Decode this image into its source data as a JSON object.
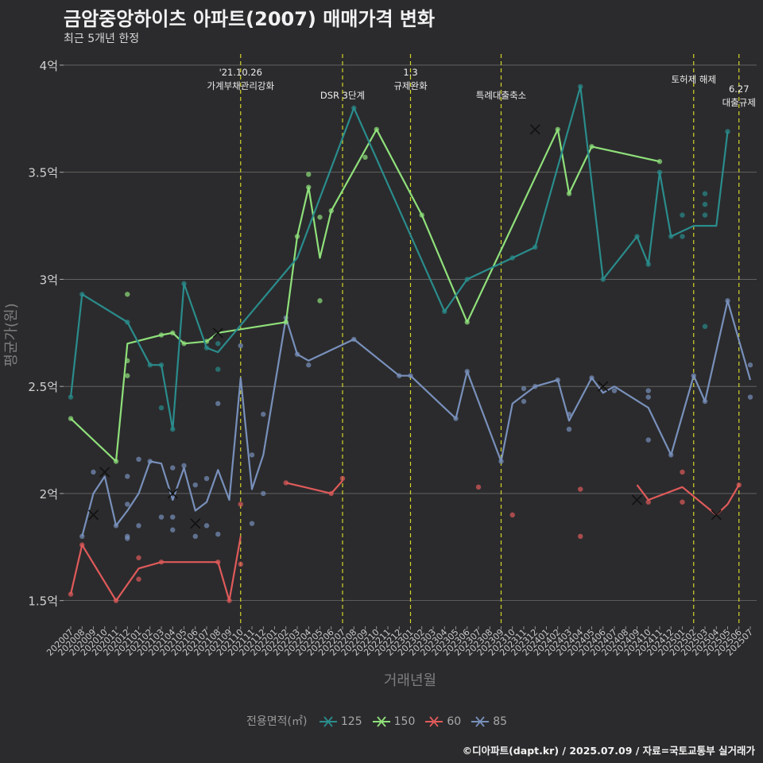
{
  "title": "금암중앙하이츠 아파트(2007) 매매가격 변화",
  "subtitle": "최근 5개년 한정",
  "caption": "©디아파트(dapt.kr) / 2025.07.09 / 자료=국토교통부 실거래가",
  "colors": {
    "125": "#2a8c8c",
    "150": "#8fe07a",
    "60": "#e05a5a",
    "85": "#7890bb",
    "vline": "#d4d42a",
    "grid": "#6a6a6a"
  },
  "chart_data": {
    "type": "line",
    "xlabel": "거래년월",
    "ylabel": "평균가(원)",
    "ylim": [
      1.38,
      4.1
    ],
    "yticks": [
      {
        "v": 1.5,
        "label": "1.5억"
      },
      {
        "v": 2,
        "label": "2억"
      },
      {
        "v": 2.5,
        "label": "2.5억"
      },
      {
        "v": 3,
        "label": "3억"
      },
      {
        "v": 3.5,
        "label": "3.5억"
      },
      {
        "v": 4,
        "label": "4억"
      }
    ],
    "categories": [
      "202007",
      "202008",
      "202009",
      "202010",
      "202011",
      "202012",
      "202101",
      "202102",
      "202103",
      "202104",
      "202105",
      "202106",
      "202107",
      "202108",
      "202109",
      "202110",
      "202111",
      "202112",
      "202201",
      "202202",
      "202203",
      "202204",
      "202205",
      "202206",
      "202207",
      "202208",
      "202209",
      "202210",
      "202211",
      "202212",
      "202301",
      "202302",
      "202303",
      "202304",
      "202305",
      "202306",
      "202307",
      "202308",
      "202309",
      "202310",
      "202311",
      "202312",
      "202401",
      "202402",
      "202403",
      "202404",
      "202405",
      "202406",
      "202407",
      "202408",
      "202409",
      "202410",
      "202411",
      "202412",
      "202501",
      "202502",
      "202503",
      "202504",
      "202505",
      "202506",
      "202507"
    ],
    "legend_title": "전용면적(㎡)",
    "events": [
      {
        "x": "202110",
        "label": "'21.10.26\n가계부채관리강화",
        "row": 0
      },
      {
        "x": "202207",
        "label": "DSR 3단계",
        "row": 2
      },
      {
        "x": "202301",
        "label": "1.3\n규제완화",
        "row": 0
      },
      {
        "x": "202309",
        "label": "특례대출축소",
        "row": 2
      },
      {
        "x": "202502",
        "label": "토허제 해제",
        "row": 1
      },
      {
        "x": "202506",
        "label": "6.27\n대출규제",
        "row": 1
      }
    ],
    "series": [
      {
        "name": "125",
        "line": [
          [
            "202007",
            2.45
          ],
          [
            "202008",
            2.93
          ],
          [
            "202012",
            2.8
          ],
          [
            "202102",
            2.6
          ],
          [
            "202103",
            2.6
          ],
          [
            "202104",
            2.3
          ],
          [
            "202105",
            2.98
          ],
          [
            "202107",
            2.68
          ],
          [
            "202108",
            2.66
          ],
          [
            "202203",
            3.1
          ],
          [
            "202208",
            3.8
          ],
          [
            "202304",
            2.85
          ],
          [
            "202306",
            3.0
          ],
          [
            "202310",
            3.1
          ],
          [
            "202312",
            3.15
          ],
          [
            "202404",
            3.9
          ],
          [
            "202406",
            3.0
          ],
          [
            "202409",
            3.2
          ],
          [
            "202410",
            3.07
          ],
          [
            "202411",
            3.5
          ],
          [
            "202412",
            3.2
          ],
          [
            "202502",
            3.25
          ],
          [
            "202504",
            3.25
          ],
          [
            "202505",
            3.69
          ]
        ],
        "points": [
          [
            "202007",
            2.45
          ],
          [
            "202008",
            2.93
          ],
          [
            "202012",
            2.8
          ],
          [
            "202102",
            2.6
          ],
          [
            "202103",
            2.6
          ],
          [
            "202103",
            2.4
          ],
          [
            "202104",
            2.3
          ],
          [
            "202105",
            2.98
          ],
          [
            "202107",
            2.68
          ],
          [
            "202108",
            2.7
          ],
          [
            "202108",
            2.58
          ],
          [
            "202208",
            3.8
          ],
          [
            "202304",
            2.85
          ],
          [
            "202306",
            3.0
          ],
          [
            "202310",
            3.1
          ],
          [
            "202312",
            3.15
          ],
          [
            "202404",
            3.9
          ],
          [
            "202406",
            3.0
          ],
          [
            "202409",
            3.2
          ],
          [
            "202410",
            3.07
          ],
          [
            "202411",
            3.5
          ],
          [
            "202412",
            3.2
          ],
          [
            "202501",
            3.3
          ],
          [
            "202501",
            3.2
          ],
          [
            "202503",
            3.4
          ],
          [
            "202503",
            3.35
          ],
          [
            "202503",
            3.3
          ],
          [
            "202503",
            2.78
          ],
          [
            "202505",
            3.69
          ]
        ],
        "crosses": []
      },
      {
        "name": "150",
        "line": [
          [
            "202007",
            2.35
          ],
          [
            "202011",
            2.15
          ],
          [
            "202012",
            2.7
          ],
          [
            "202103",
            2.74
          ],
          [
            "202104",
            2.75
          ],
          [
            "202105",
            2.7
          ],
          [
            "202107",
            2.71
          ],
          [
            "202108",
            2.75
          ],
          [
            "202202",
            2.8
          ],
          [
            "202203",
            3.2
          ],
          [
            "202204",
            3.43
          ],
          [
            "202205",
            3.1
          ],
          [
            "202206",
            3.32
          ],
          [
            "202210",
            3.7
          ],
          [
            "202302",
            3.3
          ],
          [
            "202306",
            2.8
          ],
          [
            "202402",
            3.7
          ],
          [
            "202403",
            3.4
          ],
          [
            "202405",
            3.62
          ],
          [
            "202411",
            3.55
          ]
        ],
        "points": [
          [
            "202007",
            2.35
          ],
          [
            "202011",
            2.15
          ],
          [
            "202012",
            2.93
          ],
          [
            "202012",
            2.62
          ],
          [
            "202012",
            2.55
          ],
          [
            "202103",
            2.74
          ],
          [
            "202104",
            2.75
          ],
          [
            "202105",
            2.7
          ],
          [
            "202107",
            2.71
          ],
          [
            "202202",
            2.8
          ],
          [
            "202203",
            3.2
          ],
          [
            "202204",
            3.49
          ],
          [
            "202204",
            3.43
          ],
          [
            "202205",
            3.29
          ],
          [
            "202205",
            2.9
          ],
          [
            "202206",
            3.32
          ],
          [
            "202209",
            3.57
          ],
          [
            "202210",
            3.7
          ],
          [
            "202302",
            3.3
          ],
          [
            "202306",
            2.8
          ],
          [
            "202402",
            3.7
          ],
          [
            "202403",
            3.4
          ],
          [
            "202405",
            3.62
          ],
          [
            "202411",
            3.55
          ]
        ],
        "crosses": [
          [
            "202108",
            2.75
          ],
          [
            "202312",
            3.7
          ]
        ]
      },
      {
        "name": "60",
        "line": [
          [
            "202007",
            1.53
          ],
          [
            "202008",
            1.76
          ],
          [
            "202011",
            1.5
          ],
          [
            "202101",
            1.65
          ],
          [
            "202103",
            1.68
          ],
          [
            "202108",
            1.68
          ],
          [
            "202109",
            1.5
          ],
          [
            "202110",
            1.8
          ]
        ],
        "line2": [
          [
            "202202",
            2.05
          ],
          [
            "202206",
            2.0
          ],
          [
            "202207",
            2.06
          ]
        ],
        "line3": [
          [
            "202409",
            2.04
          ],
          [
            "202410",
            1.97
          ],
          [
            "202501",
            2.03
          ],
          [
            "202504",
            1.9
          ],
          [
            "202505",
            1.95
          ],
          [
            "202506",
            2.04
          ]
        ],
        "points": [
          [
            "202007",
            1.53
          ],
          [
            "202008",
            1.76
          ],
          [
            "202011",
            1.5
          ],
          [
            "202101",
            1.7
          ],
          [
            "202101",
            1.6
          ],
          [
            "202103",
            1.68
          ],
          [
            "202108",
            1.68
          ],
          [
            "202109",
            1.5
          ],
          [
            "202110",
            1.95
          ],
          [
            "202110",
            1.67
          ],
          [
            "202202",
            2.05
          ],
          [
            "202206",
            2.0
          ],
          [
            "202207",
            2.07
          ],
          [
            "202307",
            2.03
          ],
          [
            "202310",
            1.9
          ],
          [
            "202404",
            2.02
          ],
          [
            "202404",
            1.8
          ],
          [
            "202410",
            1.96
          ],
          [
            "202501",
            2.1
          ],
          [
            "202501",
            1.96
          ],
          [
            "202506",
            2.04
          ]
        ],
        "crosses": [
          [
            "202409",
            1.97
          ],
          [
            "202504",
            1.9
          ]
        ]
      },
      {
        "name": "85",
        "line": [
          [
            "202008",
            1.8
          ],
          [
            "202009",
            2.0
          ],
          [
            "202010",
            2.08
          ],
          [
            "202011",
            1.85
          ],
          [
            "202012",
            1.92
          ],
          [
            "202101",
            2.0
          ],
          [
            "202102",
            2.15
          ],
          [
            "202103",
            2.14
          ],
          [
            "202104",
            1.97
          ],
          [
            "202105",
            2.12
          ],
          [
            "202106",
            1.92
          ],
          [
            "202107",
            1.96
          ],
          [
            "202108",
            2.11
          ],
          [
            "202109",
            1.97
          ],
          [
            "202110",
            2.54
          ],
          [
            "202111",
            2.02
          ],
          [
            "202112",
            2.18
          ],
          [
            "202202",
            2.82
          ],
          [
            "202203",
            2.65
          ],
          [
            "202204",
            2.62
          ],
          [
            "202208",
            2.72
          ],
          [
            "202212",
            2.55
          ],
          [
            "202301",
            2.55
          ],
          [
            "202305",
            2.35
          ],
          [
            "202306",
            2.57
          ],
          [
            "202309",
            2.15
          ],
          [
            "202310",
            2.42
          ],
          [
            "202311",
            2.46
          ],
          [
            "202312",
            2.5
          ],
          [
            "202402",
            2.53
          ],
          [
            "202403",
            2.34
          ],
          [
            "202405",
            2.54
          ],
          [
            "202406",
            2.47
          ],
          [
            "202407",
            2.5
          ],
          [
            "202410",
            2.4
          ],
          [
            "202412",
            2.18
          ],
          [
            "202502",
            2.55
          ],
          [
            "202503",
            2.43
          ],
          [
            "202505",
            2.9
          ],
          [
            "202507",
            2.53
          ]
        ],
        "points": [
          [
            "202008",
            1.8
          ],
          [
            "202009",
            2.1
          ],
          [
            "202011",
            1.85
          ],
          [
            "202012",
            2.08
          ],
          [
            "202012",
            1.95
          ],
          [
            "202012",
            1.8
          ],
          [
            "202012",
            1.79
          ],
          [
            "202101",
            2.16
          ],
          [
            "202101",
            1.85
          ],
          [
            "202102",
            2.15
          ],
          [
            "202103",
            1.89
          ],
          [
            "202104",
            2.12
          ],
          [
            "202104",
            1.89
          ],
          [
            "202104",
            1.83
          ],
          [
            "202105",
            2.13
          ],
          [
            "202106",
            2.04
          ],
          [
            "202106",
            1.8
          ],
          [
            "202107",
            2.07
          ],
          [
            "202107",
            1.85
          ],
          [
            "202108",
            2.42
          ],
          [
            "202108",
            1.81
          ],
          [
            "202110",
            2.69
          ],
          [
            "202111",
            2.18
          ],
          [
            "202111",
            1.86
          ],
          [
            "202112",
            2.37
          ],
          [
            "202112",
            2.0
          ],
          [
            "202202",
            2.82
          ],
          [
            "202203",
            2.65
          ],
          [
            "202204",
            2.6
          ],
          [
            "202208",
            2.72
          ],
          [
            "202212",
            2.55
          ],
          [
            "202301",
            2.55
          ],
          [
            "202305",
            2.35
          ],
          [
            "202306",
            2.57
          ],
          [
            "202309",
            2.15
          ],
          [
            "202311",
            2.43
          ],
          [
            "202311",
            2.49
          ],
          [
            "202312",
            2.5
          ],
          [
            "202402",
            2.53
          ],
          [
            "202403",
            2.3
          ],
          [
            "202403",
            2.37
          ],
          [
            "202405",
            2.54
          ],
          [
            "202407",
            2.48
          ],
          [
            "202410",
            2.48
          ],
          [
            "202410",
            2.45
          ],
          [
            "202410",
            2.25
          ],
          [
            "202412",
            2.18
          ],
          [
            "202502",
            2.55
          ],
          [
            "202503",
            2.43
          ],
          [
            "202505",
            2.9
          ],
          [
            "202507",
            2.6
          ],
          [
            "202507",
            2.45
          ]
        ],
        "crosses": [
          [
            "202009",
            1.9
          ],
          [
            "202010",
            2.1
          ],
          [
            "202104",
            2.0
          ],
          [
            "202106",
            1.86
          ],
          [
            "202406",
            2.5
          ]
        ]
      }
    ]
  }
}
